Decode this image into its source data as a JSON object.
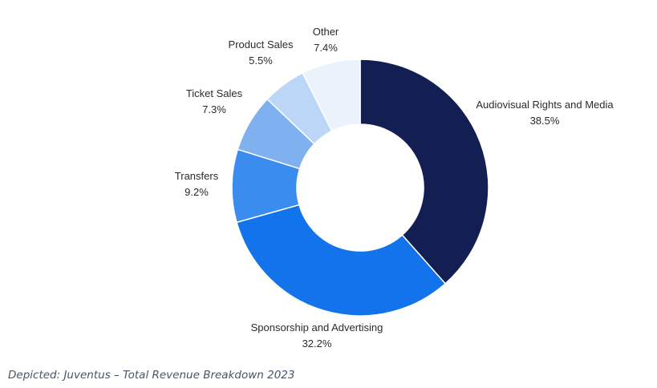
{
  "chart_data": {
    "type": "pie",
    "variant": "donut",
    "title": "",
    "slices": [
      {
        "label": "Audiovisual Rights and Media",
        "value": 38.5,
        "display": "38.5%",
        "color": "#131f52"
      },
      {
        "label": "Sponsorship and Advertising",
        "value": 32.2,
        "display": "32.2%",
        "color": "#1273ea"
      },
      {
        "label": "Transfers",
        "value": 9.2,
        "display": "9.2%",
        "color": "#3b8cef"
      },
      {
        "label": "Ticket Sales",
        "value": 7.3,
        "display": "7.3%",
        "color": "#7fb1f0"
      },
      {
        "label": "Product Sales",
        "value": 5.5,
        "display": "5.5%",
        "color": "#bcd6f7"
      },
      {
        "label": "Other",
        "value": 7.4,
        "display": "7.4%",
        "color": "#eaf2fc"
      }
    ],
    "legend": "none"
  },
  "caption": "Depicted: Juventus – Total Revenue Breakdown 2023"
}
